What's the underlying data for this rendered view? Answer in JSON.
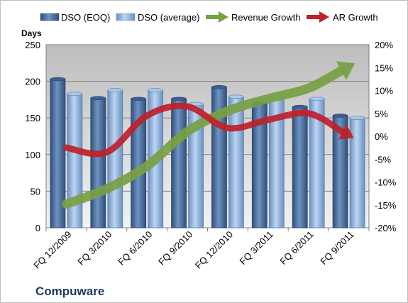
{
  "chart_data": {
    "type": "bar",
    "categories": [
      "FQ 12/2009",
      "FQ 3/2010",
      "FQ 6/2010",
      "FQ 9/2010",
      "FQ 12/2010",
      "FQ 3/2011",
      "FQ 6/2011",
      "FQ 9/2011"
    ],
    "series": [
      {
        "name": "DSO (EOQ)",
        "type": "bar",
        "axis": "left",
        "color": "#4a6d9c",
        "values": [
          203,
          177,
          176,
          176,
          192,
          170,
          165,
          153
        ]
      },
      {
        "name": "DSO (average)",
        "type": "bar",
        "axis": "left",
        "color": "#8fb3dd",
        "values": [
          183,
          188,
          188,
          169,
          179,
          176,
          176,
          150
        ]
      },
      {
        "name": "Revenue Growth",
        "type": "line-arrow",
        "axis": "right",
        "color": "#77a043",
        "values": [
          -14.8,
          -11.5,
          -6.5,
          1.0,
          5.5,
          8.2,
          10.5,
          15.2
        ]
      },
      {
        "name": "AR Growth",
        "type": "line-arrow",
        "axis": "right",
        "color": "#c0202a",
        "values": [
          -2.5,
          -3.5,
          4.5,
          6.5,
          1.8,
          3.6,
          5.0,
          0.2
        ]
      }
    ],
    "ylabel": "Days",
    "ylim": [
      0,
      250
    ],
    "yticks": [
      0,
      50,
      100,
      150,
      200,
      250
    ],
    "y2lim": [
      -20,
      20
    ],
    "y2ticks": [
      "-20%",
      "-15%",
      "-10%",
      "-5%",
      "0%",
      "5%",
      "10%",
      "15%",
      "20%"
    ],
    "grid": true,
    "legend_position": "top",
    "company": "Compuware"
  }
}
